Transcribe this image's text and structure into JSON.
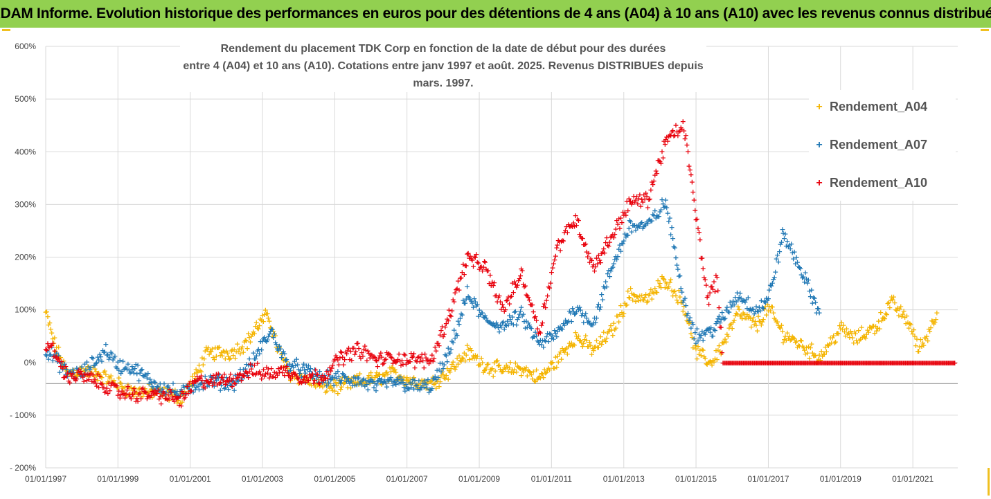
{
  "banner": "ADAM Informe. Evolution historique des performances en euros pour des détentions de 4 ans (A04) à 10 ans (A10) avec les revenus connus distribués",
  "chart_data": {
    "type": "scatter",
    "title_line1": "Rendement du placement TDK Corp en fonction de la date de début pour des durées",
    "title_line2": "entre 4 (A04) et 10 ans (A10). Cotations entre janv 1997 et août. 2025. Revenus DISTRIBUES depuis mars. 1997.",
    "x_range": [
      "1997-01-01",
      "2022-03-31"
    ],
    "y_range": [
      -2.0,
      6.0
    ],
    "y_ticks": [
      {
        "v": 6,
        "label": "600%"
      },
      {
        "v": 5,
        "label": "500%"
      },
      {
        "v": 4,
        "label": "400%"
      },
      {
        "v": 3,
        "label": "300%"
      },
      {
        "v": 2,
        "label": "200%"
      },
      {
        "v": 1,
        "label": "100%"
      },
      {
        "v": 0,
        "label": "0%"
      },
      {
        "v": -1,
        "label": "- 100%"
      },
      {
        "v": -2,
        "label": "- 200%"
      }
    ],
    "x_ticks": [
      "01/01/1997",
      "01/01/1999",
      "01/01/2001",
      "01/01/2003",
      "01/01/2005",
      "01/01/2007",
      "01/01/2009",
      "01/01/2011",
      "01/01/2013",
      "01/01/2015",
      "01/01/2017",
      "01/01/2019",
      "01/01/2021"
    ],
    "legend_position": "top-right",
    "series": [
      {
        "name": "Rendement_A04",
        "color": "#f4b400",
        "points": [
          [
            "1997-01",
            0.95
          ],
          [
            "1997-04",
            0.35
          ],
          [
            "1997-08",
            -0.2
          ],
          [
            "1998-01",
            -0.15
          ],
          [
            "1998-06",
            -0.2
          ],
          [
            "1999-01",
            -0.4
          ],
          [
            "1999-06",
            -0.55
          ],
          [
            "2000-01",
            -0.55
          ],
          [
            "2000-06",
            -0.6
          ],
          [
            "2000-10",
            -0.65
          ],
          [
            "2001-03",
            -0.25
          ],
          [
            "2001-06",
            0.15
          ],
          [
            "2001-10",
            0.2
          ],
          [
            "2002-03",
            0.2
          ],
          [
            "2002-08",
            0.4
          ],
          [
            "2002-12",
            0.75
          ],
          [
            "2003-03",
            0.9
          ],
          [
            "2003-06",
            0.3
          ],
          [
            "2003-10",
            -0.2
          ],
          [
            "2004-03",
            -0.3
          ],
          [
            "2004-09",
            -0.45
          ],
          [
            "2005-03",
            -0.45
          ],
          [
            "2005-09",
            -0.35
          ],
          [
            "2006-03",
            -0.3
          ],
          [
            "2006-09",
            -0.2
          ],
          [
            "2007-03",
            -0.35
          ],
          [
            "2007-09",
            -0.4
          ],
          [
            "2008-03",
            -0.15
          ],
          [
            "2008-09",
            0.2
          ],
          [
            "2009-03",
            -0.05
          ],
          [
            "2009-09",
            -0.15
          ],
          [
            "2010-03",
            -0.1
          ],
          [
            "2010-09",
            -0.3
          ],
          [
            "2011-03",
            0.05
          ],
          [
            "2011-09",
            0.5
          ],
          [
            "2012-03",
            0.25
          ],
          [
            "2012-09",
            0.6
          ],
          [
            "2013-03",
            1.3
          ],
          [
            "2013-09",
            1.2
          ],
          [
            "2014-03",
            1.6
          ],
          [
            "2014-09",
            1.1
          ],
          [
            "2015-01",
            0.2
          ],
          [
            "2015-06",
            0.0
          ],
          [
            "2015-10",
            0.35
          ],
          [
            "2016-03",
            0.95
          ],
          [
            "2016-09",
            0.7
          ],
          [
            "2017-01",
            1.05
          ],
          [
            "2017-06",
            0.55
          ],
          [
            "2018-01",
            0.3
          ],
          [
            "2018-06",
            0.1
          ],
          [
            "2019-01",
            0.65
          ],
          [
            "2019-06",
            0.45
          ],
          [
            "2020-01",
            0.7
          ],
          [
            "2020-06",
            1.15
          ],
          [
            "2020-12",
            0.75
          ],
          [
            "2021-03",
            0.25
          ],
          [
            "2021-06",
            0.55
          ],
          [
            "2021-09",
            0.95
          ]
        ]
      },
      {
        "name": "Rendement_A07",
        "color": "#1f77b4",
        "points": [
          [
            "1997-01",
            0.25
          ],
          [
            "1997-04",
            0.1
          ],
          [
            "1997-08",
            -0.2
          ],
          [
            "1998-01",
            -0.2
          ],
          [
            "1998-06",
            0.05
          ],
          [
            "1998-09",
            0.25
          ],
          [
            "1999-01",
            -0.05
          ],
          [
            "1999-06",
            -0.1
          ],
          [
            "2000-01",
            -0.4
          ],
          [
            "2000-06",
            -0.5
          ],
          [
            "2000-10",
            -0.6
          ],
          [
            "2001-03",
            -0.4
          ],
          [
            "2001-09",
            -0.35
          ],
          [
            "2002-03",
            -0.4
          ],
          [
            "2002-09",
            -0.05
          ],
          [
            "2003-01",
            0.35
          ],
          [
            "2003-04",
            0.6
          ],
          [
            "2003-09",
            0.0
          ],
          [
            "2004-03",
            -0.15
          ],
          [
            "2004-09",
            -0.3
          ],
          [
            "2005-03",
            -0.3
          ],
          [
            "2005-09",
            -0.35
          ],
          [
            "2006-03",
            -0.45
          ],
          [
            "2006-09",
            -0.35
          ],
          [
            "2007-03",
            -0.45
          ],
          [
            "2007-09",
            -0.45
          ],
          [
            "2008-03",
            0.15
          ],
          [
            "2008-09",
            1.3
          ],
          [
            "2009-03",
            0.8
          ],
          [
            "2009-09",
            0.7
          ],
          [
            "2010-03",
            0.9
          ],
          [
            "2010-09",
            0.35
          ],
          [
            "2011-03",
            0.55
          ],
          [
            "2011-09",
            1.05
          ],
          [
            "2012-03",
            0.75
          ],
          [
            "2012-09",
            1.8
          ],
          [
            "2013-03",
            2.6
          ],
          [
            "2013-09",
            2.6
          ],
          [
            "2014-03",
            3.05
          ],
          [
            "2014-09",
            1.2
          ],
          [
            "2015-01",
            0.5
          ],
          [
            "2015-06",
            0.6
          ],
          [
            "2015-10",
            0.85
          ],
          [
            "2016-03",
            1.3
          ],
          [
            "2016-09",
            1.0
          ],
          [
            "2017-01",
            1.2
          ],
          [
            "2017-06",
            2.45
          ],
          [
            "2017-12",
            1.75
          ],
          [
            "2018-06",
            0.95
          ]
        ]
      },
      {
        "name": "Rendement_A10",
        "color": "#e8000b",
        "points": [
          [
            "1997-01",
            0.35
          ],
          [
            "1997-04",
            0.2
          ],
          [
            "1997-08",
            -0.25
          ],
          [
            "1998-01",
            -0.25
          ],
          [
            "1998-06",
            -0.35
          ],
          [
            "1999-01",
            -0.55
          ],
          [
            "1999-06",
            -0.6
          ],
          [
            "2000-01",
            -0.6
          ],
          [
            "2000-06",
            -0.65
          ],
          [
            "2000-10",
            -0.7
          ],
          [
            "2001-03",
            -0.35
          ],
          [
            "2001-09",
            -0.35
          ],
          [
            "2002-03",
            -0.3
          ],
          [
            "2002-09",
            -0.15
          ],
          [
            "2003-03",
            -0.2
          ],
          [
            "2003-09",
            -0.15
          ],
          [
            "2004-03",
            -0.3
          ],
          [
            "2004-09",
            -0.25
          ],
          [
            "2005-03",
            0.1
          ],
          [
            "2005-09",
            0.25
          ],
          [
            "2006-03",
            0.05
          ],
          [
            "2006-09",
            0.1
          ],
          [
            "2007-03",
            0.05
          ],
          [
            "2007-09",
            0.05
          ],
          [
            "2008-03",
            0.9
          ],
          [
            "2008-09",
            2.0
          ],
          [
            "2009-03",
            1.8
          ],
          [
            "2009-09",
            1.0
          ],
          [
            "2010-03",
            1.7
          ],
          [
            "2010-09",
            0.6
          ],
          [
            "2011-03",
            2.2
          ],
          [
            "2011-09",
            2.75
          ],
          [
            "2012-03",
            1.8
          ],
          [
            "2012-09",
            2.4
          ],
          [
            "2013-03",
            3.05
          ],
          [
            "2013-09",
            3.1
          ],
          [
            "2014-03",
            4.2
          ],
          [
            "2014-09",
            4.5
          ],
          [
            "2015-01",
            2.8
          ],
          [
            "2015-05",
            1.2
          ],
          [
            "2015-08",
            1.6
          ],
          [
            "2015-10",
            0.0
          ],
          [
            "2017-01",
            0.0
          ],
          [
            "2019-01",
            0.0
          ],
          [
            "2021-01",
            0.0
          ],
          [
            "2022-03",
            0.0
          ]
        ]
      }
    ]
  }
}
